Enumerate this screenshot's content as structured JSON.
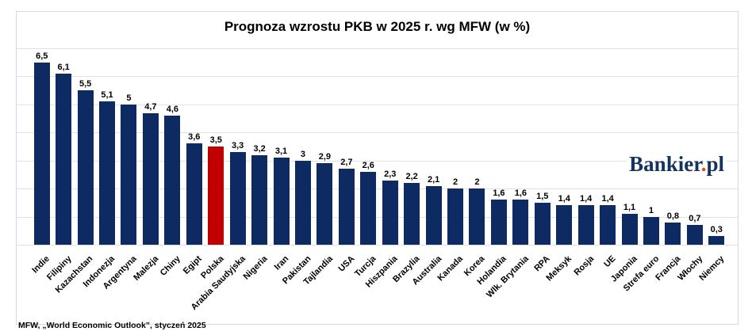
{
  "title": "Prognoza wzrostu PKB w 2025 r. wg MFW (w %)",
  "source_note": "MFW, „World Economic Outlook”, styczeń 2025",
  "logo": {
    "part1": "Bankier",
    "dot": ".",
    "part2": "pl"
  },
  "colors": {
    "bar": "#0e2a63",
    "highlight": "#c00000",
    "grid": "#e2e2e2",
    "frame_border": "#d8d8d8",
    "logo_navy": "#14335f",
    "logo_dot": "#e84b0c",
    "text": "#000000"
  },
  "chart_data": {
    "type": "bar",
    "title": "Prognoza wzrostu PKB w 2025 r. wg MFW (w %)",
    "xlabel": "",
    "ylabel": "",
    "ylim": [
      0,
      7
    ],
    "grid": true,
    "legend": false,
    "bar_color": "#0e2a63",
    "highlight_color": "#c00000",
    "highlight_category": "Polska",
    "highlight_index": 8,
    "categories": [
      "Indie",
      "Filipiny",
      "Kazachstan",
      "Indonezja",
      "Argentyna",
      "Malezja",
      "Chiny",
      "Egipt",
      "Polska",
      "Arabia Saudyjska",
      "Nigeria",
      "Iran",
      "Pakistan",
      "Tajlandia",
      "USA",
      "Turcja",
      "Hiszpania",
      "Brazylia",
      "Australia",
      "Kanada",
      "Korea",
      "Holandia",
      "Wlk. Brytania",
      "RPA",
      "Meksyk",
      "Rosja",
      "UE",
      "Japonia",
      "Strefa euro",
      "Francja",
      "Włochy",
      "Niemcy"
    ],
    "values": [
      6.5,
      6.1,
      5.5,
      5.1,
      5,
      4.7,
      4.6,
      3.6,
      3.5,
      3.3,
      3.2,
      3.1,
      3,
      2.9,
      2.7,
      2.6,
      2.3,
      2.2,
      2.1,
      2,
      2,
      1.6,
      1.6,
      1.5,
      1.4,
      1.4,
      1.4,
      1.1,
      1,
      0.8,
      0.7,
      0.3
    ],
    "value_labels": [
      "6,5",
      "6,1",
      "5,5",
      "5,1",
      "5",
      "4,7",
      "4,6",
      "3,6",
      "3,5",
      "3,3",
      "3,2",
      "3,1",
      "3",
      "2,9",
      "2,7",
      "2,6",
      "2,3",
      "2,2",
      "2,1",
      "2",
      "2",
      "1,6",
      "1,6",
      "1,5",
      "1,4",
      "1,4",
      "1,4",
      "1,1",
      "1",
      "0,8",
      "0,7",
      "0,3"
    ]
  }
}
